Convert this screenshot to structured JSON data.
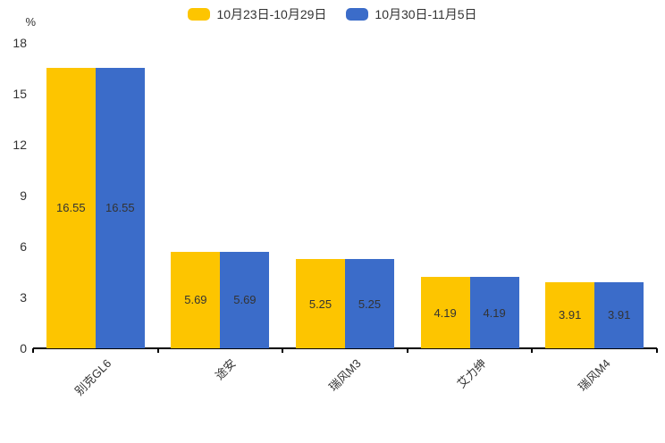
{
  "chart_data": {
    "type": "bar",
    "title": "",
    "categories": [
      "别克GL6",
      "途安",
      "瑞风M3",
      "艾力绅",
      "瑞风M4"
    ],
    "series": [
      {
        "name": "10月23日-10月29日",
        "color": "#FDC500",
        "values": [
          16.55,
          5.69,
          5.25,
          4.19,
          3.91
        ]
      },
      {
        "name": "10月30日-11月5日",
        "color": "#3B6CC9",
        "values": [
          16.55,
          5.69,
          5.25,
          4.19,
          3.91
        ]
      }
    ],
    "xlabel": "",
    "ylabel": "%",
    "yticks": [
      0,
      3,
      6,
      9,
      12,
      15,
      18
    ],
    "ylim": [
      0,
      18
    ],
    "grid": false,
    "legend_position": "top",
    "value_labels": "inside-center",
    "colors": {
      "axis": "#000000",
      "text": "#333333",
      "background": "#ffffff"
    }
  }
}
